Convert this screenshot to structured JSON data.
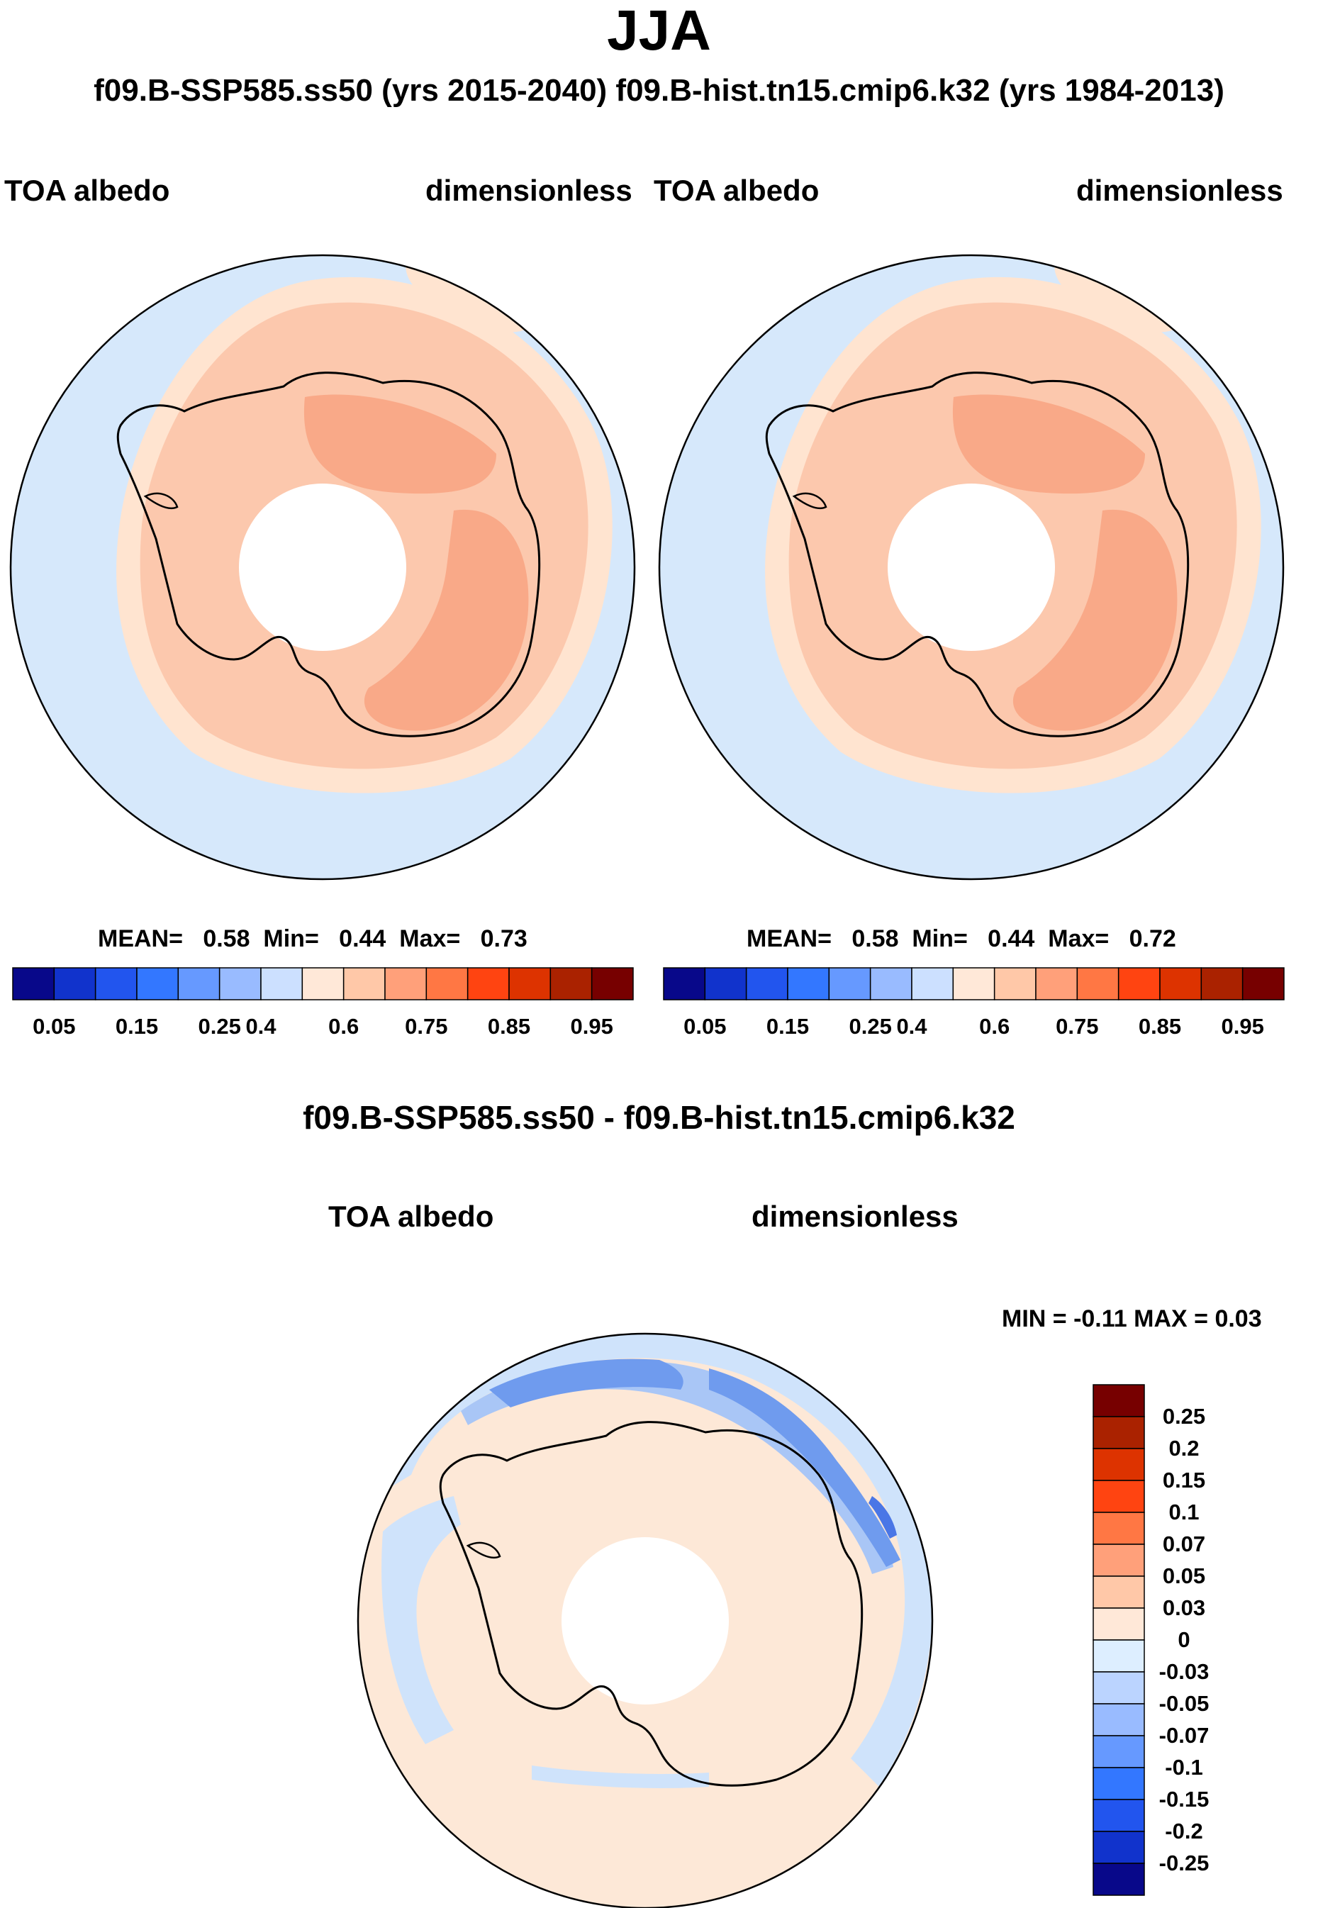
{
  "header": {
    "title": "JJA",
    "subtitle": "f09.B-SSP585.ss50 (yrs 2015-2040)  f09.B-hist.tn15.cmip6.k32 (yrs 1984-2013)"
  },
  "panels": [
    {
      "left_label": "TOA albedo",
      "right_label": "dimensionless",
      "mean_label": "MEAN=",
      "mean": "0.58",
      "min_label": "Min=",
      "min": "0.44",
      "max_label": "Max=",
      "max": "0.73"
    },
    {
      "left_label": "TOA albedo",
      "right_label": "dimensionless",
      "mean_label": "MEAN=",
      "mean": "0.58",
      "min_label": "Min=",
      "min": "0.44",
      "max_label": "Max=",
      "max": "0.72"
    }
  ],
  "colorbar": {
    "colors": [
      "#08088a",
      "#1133cc",
      "#2255ee",
      "#3377ff",
      "#6699ff",
      "#99bbff",
      "#cce0ff",
      "#ffe8d8",
      "#ffc8a8",
      "#ffa07a",
      "#ff7744",
      "#ff4411",
      "#dd3300",
      "#aa2200",
      "#770000"
    ],
    "tick_labels": [
      "0.05",
      "0.15",
      "0.25",
      "0.4",
      "0.6",
      "0.75",
      "0.85",
      "0.95"
    ]
  },
  "difference": {
    "title": "f09.B-SSP585.ss50 - f09.B-hist.tn15.cmip6.k32",
    "left_label": "TOA albedo",
    "right_label": "dimensionless",
    "minmax_text": "MIN =  -0.11 MAX =   0.03",
    "colorbar": {
      "colors": [
        "#770000",
        "#aa2200",
        "#dd3300",
        "#ff4411",
        "#ff7744",
        "#ffa07a",
        "#ffc8a8",
        "#ffe8d8",
        "#ddeeff",
        "#bbd4ff",
        "#99bbff",
        "#6699ff",
        "#3377ff",
        "#2255ee",
        "#1133cc",
        "#08088a"
      ],
      "tick_labels": [
        "0.25",
        "0.2",
        "0.15",
        "0.1",
        "0.07",
        "0.05",
        "0.03",
        "0",
        "-0.03",
        "-0.05",
        "-0.07",
        "-0.1",
        "-0.15",
        "-0.2",
        "-0.25"
      ]
    }
  },
  "map_colors": {
    "ocean": "#d6e8fb",
    "band": "#ffe4d0",
    "mid": "#fcc8ad",
    "inner": "#f9a988",
    "coast": "#000000",
    "diff_base": "#fde8d7",
    "diff_light_blue": "#cfe3fb",
    "diff_mid_blue": "#a9c6f6",
    "diff_dark_blue": "#6f9bee",
    "diff_darkest_blue": "#4a76e6"
  }
}
